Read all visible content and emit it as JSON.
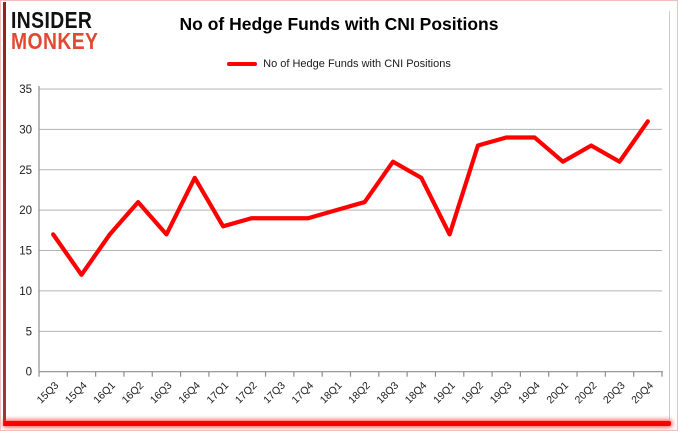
{
  "logo": {
    "line1": "INSIDER",
    "line2": "MONKEY"
  },
  "title": "No of Hedge Funds with CNI Positions",
  "legend": {
    "label": "No of Hedge Funds with CNI Positions"
  },
  "colors": {
    "series_red": "#ff0000",
    "logo_black": "#111111",
    "logo_red": "#df4b32",
    "grid": "#b3b3b3",
    "axis": "#8e8e8e",
    "tick_text": "#212121",
    "frame_pink": "#f2bdbd",
    "left_accent": "#922626",
    "right_shadow": "#cccccc"
  },
  "chart_data": {
    "type": "line",
    "title": "No of Hedge Funds with CNI Positions",
    "categories": [
      "15Q3",
      "15Q4",
      "16Q1",
      "16Q2",
      "16Q3",
      "16Q4",
      "17Q1",
      "17Q2",
      "17Q3",
      "17Q4",
      "18Q1",
      "18Q2",
      "18Q3",
      "18Q4",
      "19Q1",
      "19Q2",
      "19Q3",
      "19Q4",
      "20Q1",
      "20Q2",
      "20Q3",
      "20Q4"
    ],
    "series": [
      {
        "name": "No of Hedge Funds with CNI Positions",
        "color": "#ff0000",
        "values": [
          17,
          12,
          17,
          21,
          17,
          24,
          18,
          19,
          19,
          19,
          20,
          21,
          26,
          24,
          17,
          28,
          29,
          29,
          26,
          28,
          26,
          31
        ]
      }
    ],
    "xlabel": "",
    "ylabel": "",
    "ylim": [
      0,
      35
    ],
    "yticks": [
      0,
      5,
      10,
      15,
      20,
      25,
      30,
      35
    ],
    "grid": true,
    "legend_position": "top-center"
  }
}
